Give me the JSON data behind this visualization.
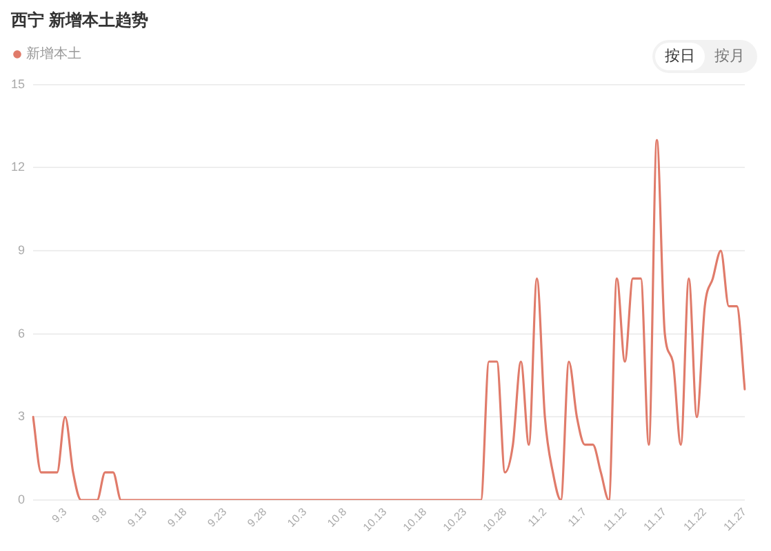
{
  "chart_data": {
    "type": "line",
    "title": "西宁 新增本土趋势",
    "categories": [
      null,
      null,
      null,
      null,
      "9.3",
      null,
      null,
      null,
      null,
      "9.8",
      null,
      null,
      null,
      null,
      "9.13",
      null,
      null,
      null,
      null,
      "9.18",
      null,
      null,
      null,
      null,
      "9.23",
      null,
      null,
      null,
      null,
      "9.28",
      null,
      null,
      null,
      null,
      "10.3",
      null,
      null,
      null,
      null,
      "10.8",
      null,
      null,
      null,
      null,
      "10.13",
      null,
      null,
      null,
      null,
      "10.18",
      null,
      null,
      null,
      null,
      "10.23",
      null,
      null,
      null,
      null,
      "10.28",
      null,
      null,
      null,
      null,
      "11.2",
      null,
      null,
      null,
      null,
      "11.7",
      null,
      null,
      null,
      null,
      "11.12",
      null,
      null,
      null,
      null,
      "11.17",
      null,
      null,
      null,
      null,
      "11.22",
      null,
      null,
      null,
      null,
      "11.27"
    ],
    "series": [
      {
        "name": "新增本土",
        "color": "#e07b6a",
        "values": [
          3,
          1,
          1,
          1,
          3,
          1,
          0,
          0,
          0,
          1,
          1,
          0,
          0,
          0,
          0,
          0,
          0,
          0,
          0,
          0,
          0,
          0,
          0,
          0,
          0,
          0,
          0,
          0,
          0,
          0,
          0,
          0,
          0,
          0,
          0,
          0,
          0,
          0,
          0,
          0,
          0,
          0,
          0,
          0,
          0,
          0,
          0,
          0,
          0,
          0,
          0,
          0,
          0,
          0,
          0,
          0,
          0,
          5,
          5,
          1,
          2,
          5,
          2,
          8,
          3,
          1,
          0,
          5,
          3,
          2,
          2,
          1,
          0,
          8,
          5,
          8,
          8,
          2,
          13,
          6,
          5,
          2,
          8,
          3,
          7,
          8,
          9,
          7,
          7,
          4
        ]
      }
    ],
    "ylim": [
      0,
      15
    ],
    "yticks": [
      0,
      3,
      6,
      9,
      12,
      15
    ],
    "grid": "y",
    "legend": "top left",
    "marker": "none",
    "annotations": [
      "按日",
      "按月"
    ]
  }
}
